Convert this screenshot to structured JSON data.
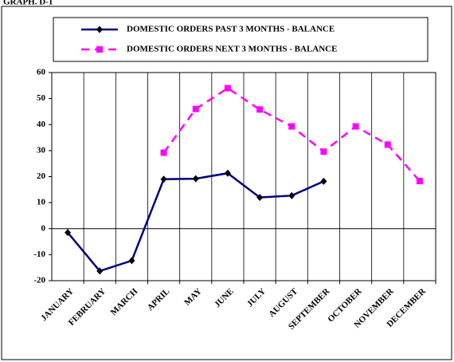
{
  "chart_data": {
    "type": "line",
    "title": "GRAPH. D-1",
    "categories": [
      "JANUARY",
      "FEBRUARY",
      "MARCH",
      "APRIL",
      "MAY",
      "JUNE",
      "JULY",
      "AUGUST",
      "SEPTEMBER",
      "OCTOBER",
      "NOVEMBER",
      "DECEMBER"
    ],
    "series": [
      {
        "name": "DOMESTIC ORDERS PAST 3 MONTHS - BALANCE",
        "color": "#000080",
        "marker": "diamond",
        "dashed": false,
        "values": [
          -1.5,
          -16.3,
          -12.3,
          19,
          19.2,
          21.3,
          12,
          12.7,
          18.2,
          null,
          null,
          null
        ]
      },
      {
        "name": "DOMESTIC ORDERS NEXT 3 MONTHS - BALANCE",
        "color": "#ff00ff",
        "marker": "square",
        "dashed": true,
        "values": [
          null,
          null,
          null,
          29.2,
          46,
          54,
          45.8,
          39.3,
          29.6,
          39.3,
          32.3,
          18.3
        ]
      }
    ],
    "ylim": [
      -20,
      60
    ],
    "yticks": [
      -20,
      -10,
      0,
      10,
      20,
      30,
      40,
      50,
      60
    ],
    "grid": "vertical",
    "legend": "top"
  }
}
